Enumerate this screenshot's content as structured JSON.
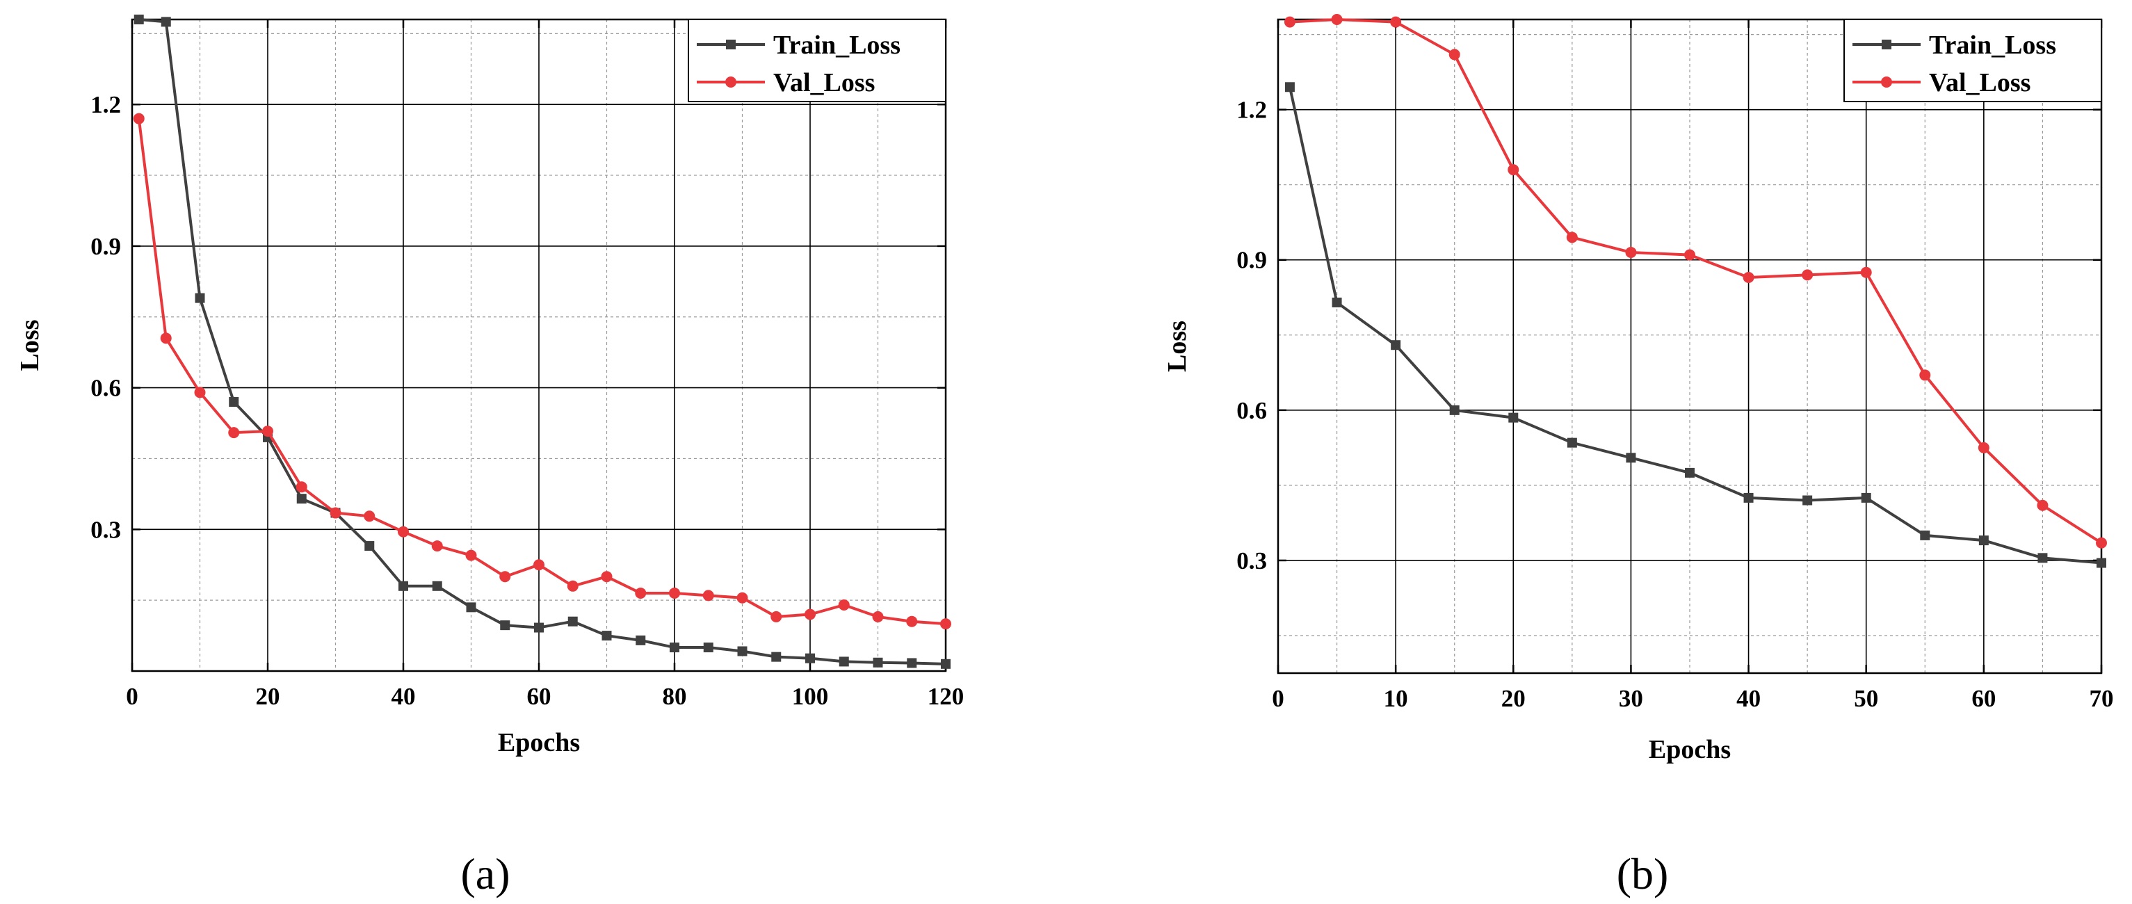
{
  "colors": {
    "train": "#404040",
    "val": "#e8383c",
    "major_grid": "#000000",
    "minor_grid": "#9a9a9a"
  },
  "chart_data": [
    {
      "type": "line",
      "panel_label": "(a)",
      "xlabel": "Epochs",
      "ylabel": "Loss",
      "xlim": [
        0,
        120
      ],
      "ylim": [
        0.0,
        1.38
      ],
      "xticks": [
        0,
        20,
        40,
        60,
        80,
        100,
        120
      ],
      "xtick_labels": [
        "0",
        "20",
        "40",
        "60",
        "80",
        "100",
        "120"
      ],
      "yticks": [
        0.3,
        0.6,
        0.9,
        1.2
      ],
      "ytick_labels": [
        "0.3",
        "0.6",
        "0.9",
        "1.2"
      ],
      "grid": true,
      "legend_position": "top-right",
      "x": [
        1,
        5,
        10,
        15,
        20,
        25,
        30,
        35,
        40,
        45,
        50,
        55,
        60,
        65,
        70,
        75,
        80,
        85,
        90,
        95,
        100,
        105,
        110,
        115,
        120
      ],
      "series": [
        {
          "name": "Train_Loss",
          "marker": "square",
          "values": [
            1.38,
            1.375,
            0.79,
            0.57,
            0.495,
            0.365,
            0.335,
            0.265,
            0.18,
            0.18,
            0.135,
            0.097,
            0.092,
            0.105,
            0.075,
            0.065,
            0.05,
            0.05,
            0.042,
            0.03,
            0.027,
            0.02,
            0.018,
            0.017,
            0.015
          ]
        },
        {
          "name": "Val_Loss",
          "marker": "circle",
          "values": [
            1.17,
            0.705,
            0.59,
            0.505,
            0.508,
            0.39,
            0.335,
            0.328,
            0.295,
            0.265,
            0.245,
            0.2,
            0.225,
            0.18,
            0.2,
            0.165,
            0.165,
            0.16,
            0.155,
            0.115,
            0.12,
            0.14,
            0.115,
            0.105,
            0.1
          ]
        }
      ]
    },
    {
      "type": "line",
      "panel_label": "(b)",
      "xlabel": "Epochs",
      "ylabel": "Loss",
      "xlim": [
        0,
        70
      ],
      "ylim": [
        0.075,
        1.38
      ],
      "xticks": [
        0,
        10,
        20,
        30,
        40,
        50,
        60,
        70
      ],
      "xtick_labels": [
        "0",
        "10",
        "20",
        "30",
        "40",
        "50",
        "60",
        "70"
      ],
      "yticks": [
        0.3,
        0.6,
        0.9,
        1.2
      ],
      "ytick_labels": [
        "0.3",
        "0.6",
        "0.9",
        "1.2"
      ],
      "grid": true,
      "legend_position": "top-right",
      "x": [
        1,
        5,
        10,
        15,
        20,
        25,
        30,
        35,
        40,
        45,
        50,
        55,
        60,
        65,
        70
      ],
      "series": [
        {
          "name": "Train_Loss",
          "marker": "square",
          "values": [
            1.245,
            0.815,
            0.73,
            0.6,
            0.585,
            0.535,
            0.505,
            0.475,
            0.425,
            0.42,
            0.425,
            0.35,
            0.34,
            0.305,
            0.295
          ]
        },
        {
          "name": "Val_Loss",
          "marker": "circle",
          "values": [
            1.375,
            1.38,
            1.375,
            1.31,
            1.08,
            0.945,
            0.915,
            0.91,
            0.865,
            0.87,
            0.875,
            0.67,
            0.525,
            0.41,
            0.335
          ]
        }
      ]
    }
  ]
}
